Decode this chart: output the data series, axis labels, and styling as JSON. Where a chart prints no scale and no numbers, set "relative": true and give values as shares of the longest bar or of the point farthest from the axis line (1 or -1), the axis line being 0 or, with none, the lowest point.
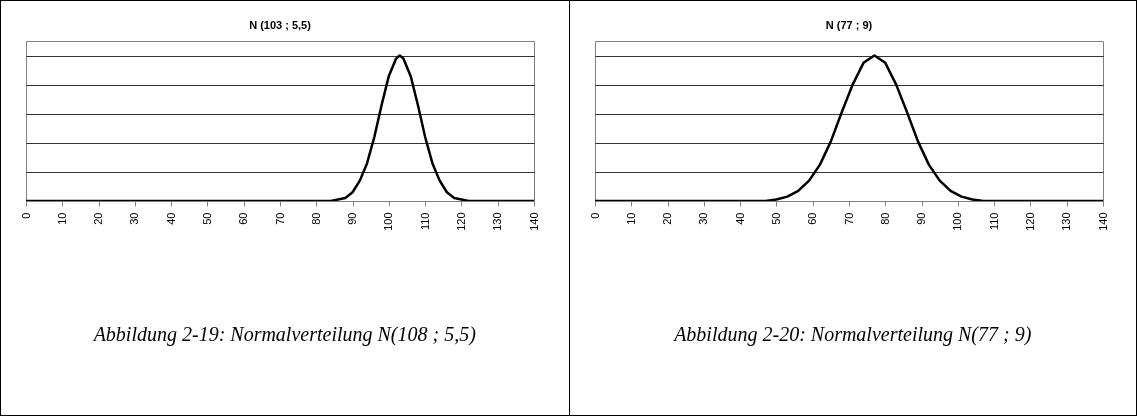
{
  "chart_data": [
    {
      "type": "line",
      "title": "N (103 ; 5,5)",
      "relative": true,
      "grid": "y",
      "color": "#000000",
      "xlim": [
        0,
        140
      ],
      "xticks": [
        0,
        10,
        20,
        30,
        40,
        50,
        60,
        70,
        80,
        90,
        100,
        110,
        120,
        130,
        140
      ],
      "annotations": [
        "Abbildung 2-19: Normalverteilung N(108 ; 5,5)"
      ],
      "x": [
        0,
        80,
        84,
        86,
        88,
        90,
        92,
        94,
        96,
        98,
        100,
        102,
        103,
        104,
        106,
        108,
        110,
        112,
        114,
        116,
        118,
        120,
        122,
        140
      ],
      "values": [
        0,
        0,
        0,
        0.01,
        0.02,
        0.06,
        0.14,
        0.26,
        0.44,
        0.66,
        0.86,
        0.98,
        1,
        0.98,
        0.86,
        0.66,
        0.44,
        0.26,
        0.14,
        0.06,
        0.02,
        0.01,
        0,
        0
      ]
    },
    {
      "type": "line",
      "title": "N (77 ; 9)",
      "relative": true,
      "grid": "y",
      "color": "#000000",
      "xlim": [
        0,
        140
      ],
      "xticks": [
        0,
        10,
        20,
        30,
        40,
        50,
        60,
        70,
        80,
        90,
        100,
        110,
        120,
        130,
        140
      ],
      "annotations": [
        "Abbildung 2-20: Normalverteilung N(77 ; 9)"
      ],
      "x": [
        0,
        40,
        44,
        47,
        50,
        53,
        56,
        59,
        62,
        65,
        68,
        71,
        74,
        77,
        80,
        83,
        86,
        89,
        92,
        95,
        98,
        101,
        104,
        107,
        140
      ],
      "values": [
        0,
        0,
        0,
        0,
        0.01,
        0.03,
        0.07,
        0.14,
        0.25,
        0.41,
        0.61,
        0.8,
        0.95,
        1,
        0.95,
        0.8,
        0.61,
        0.41,
        0.25,
        0.14,
        0.07,
        0.03,
        0.01,
        0,
        0
      ]
    }
  ]
}
